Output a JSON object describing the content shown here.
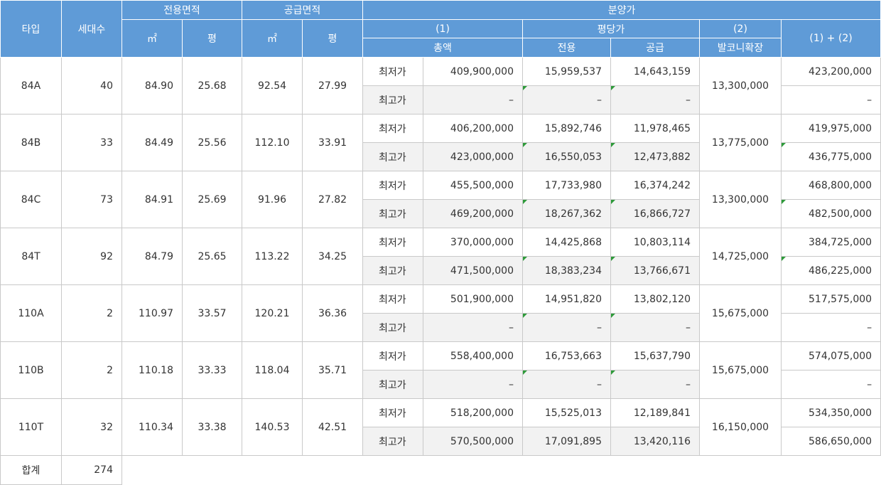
{
  "header": {
    "type": "타입",
    "households": "세대수",
    "exclusive_area": "전용면적",
    "supply_area": "공급면적",
    "sale_price": "분양가",
    "sqm": "㎡",
    "pyeong": "평",
    "total_num": "(1)",
    "total_label": "총액",
    "per_pyeong": "평당가",
    "per_exclusive": "전용",
    "per_supply": "공급",
    "balcony_num": "(2)",
    "balcony_label": "발코니확장",
    "sum_label": "(1) + (2)"
  },
  "labels": {
    "min": "최저가",
    "max": "최고가",
    "dash": "–"
  },
  "rows": [
    {
      "type": "84A",
      "households": "40",
      "ex_sqm": "84.90",
      "ex_py": "25.68",
      "sup_sqm": "92.54",
      "sup_py": "27.99",
      "min": {
        "total": "409,900,000",
        "per_ex": "15,959,537",
        "per_sup": "14,643,159",
        "sum": "423,200,000"
      },
      "max": {
        "total": "–",
        "per_ex": "–",
        "per_sup": "–",
        "sum": "–"
      },
      "balcony": "13,300,000"
    },
    {
      "type": "84B",
      "households": "33",
      "ex_sqm": "84.49",
      "ex_py": "25.56",
      "sup_sqm": "112.10",
      "sup_py": "33.91",
      "min": {
        "total": "406,200,000",
        "per_ex": "15,892,746",
        "per_sup": "11,978,465",
        "sum": "419,975,000"
      },
      "max": {
        "total": "423,000,000",
        "per_ex": "16,550,053",
        "per_sup": "12,473,882",
        "sum": "436,775,000"
      },
      "balcony": "13,775,000"
    },
    {
      "type": "84C",
      "households": "73",
      "ex_sqm": "84.91",
      "ex_py": "25.69",
      "sup_sqm": "91.96",
      "sup_py": "27.82",
      "min": {
        "total": "455,500,000",
        "per_ex": "17,733,980",
        "per_sup": "16,374,242",
        "sum": "468,800,000"
      },
      "max": {
        "total": "469,200,000",
        "per_ex": "18,267,362",
        "per_sup": "16,866,727",
        "sum": "482,500,000"
      },
      "balcony": "13,300,000"
    },
    {
      "type": "84T",
      "households": "92",
      "ex_sqm": "84.79",
      "ex_py": "25.65",
      "sup_sqm": "113.22",
      "sup_py": "34.25",
      "min": {
        "total": "370,000,000",
        "per_ex": "14,425,868",
        "per_sup": "10,803,114",
        "sum": "384,725,000"
      },
      "max": {
        "total": "471,500,000",
        "per_ex": "18,383,234",
        "per_sup": "13,766,671",
        "sum": "486,225,000"
      },
      "balcony": "14,725,000"
    },
    {
      "type": "110A",
      "households": "2",
      "ex_sqm": "110.97",
      "ex_py": "33.57",
      "sup_sqm": "120.21",
      "sup_py": "36.36",
      "min": {
        "total": "501,900,000",
        "per_ex": "14,951,820",
        "per_sup": "13,802,120",
        "sum": "517,575,000"
      },
      "max": {
        "total": "–",
        "per_ex": "–",
        "per_sup": "–",
        "sum": "–"
      },
      "balcony": "15,675,000"
    },
    {
      "type": "110B",
      "households": "2",
      "ex_sqm": "110.18",
      "ex_py": "33.33",
      "sup_sqm": "118.04",
      "sup_py": "35.71",
      "min": {
        "total": "558,400,000",
        "per_ex": "16,753,663",
        "per_sup": "15,637,790",
        "sum": "574,075,000"
      },
      "max": {
        "total": "–",
        "per_ex": "–",
        "per_sup": "–",
        "sum": "–"
      },
      "balcony": "15,675,000"
    },
    {
      "type": "110T",
      "households": "32",
      "ex_sqm": "110.34",
      "ex_py": "33.38",
      "sup_sqm": "140.53",
      "sup_py": "42.51",
      "min": {
        "total": "518,200,000",
        "per_ex": "15,525,013",
        "per_sup": "12,189,841",
        "sum": "534,350,000"
      },
      "max": {
        "total": "570,500,000",
        "per_ex": "17,091,895",
        "per_sup": "13,420,116",
        "sum": "586,650,000"
      },
      "balcony": "16,150,000"
    }
  ],
  "footer": {
    "label": "합계",
    "total_households": "274"
  }
}
